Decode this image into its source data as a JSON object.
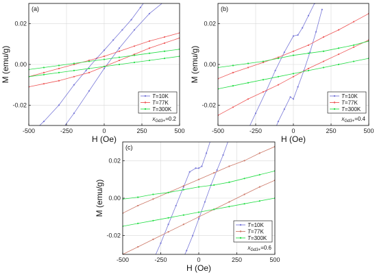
{
  "chart_data": [
    {
      "type": "line",
      "panel_label": "(a)",
      "xlabel": "H (Oe)",
      "ylabel": "M (emu/g)",
      "xlim": [
        -500,
        500
      ],
      "ylim": [
        -0.03,
        0.03
      ],
      "x_ticks": [
        -500,
        -250,
        0,
        250,
        500
      ],
      "x_tick_labels": [
        "-500",
        "-250",
        "0",
        "250",
        "500"
      ],
      "y_ticks": [
        -0.02,
        0.0,
        0.02
      ],
      "y_tick_labels": [
        "-0.02",
        "0.00",
        "0.02"
      ],
      "grid": true,
      "legend_position": "lower-right",
      "annotation": {
        "prefix": "x",
        "sub": "Gd3+",
        "suffix": "=0.2"
      },
      "series": [
        {
          "name": "T=10K",
          "label_prefix": "T",
          "label_suffix": "=10K",
          "color": "#7878d8",
          "branches": [
            {
              "x": [
                -500,
                -400,
                -300,
                -200,
                -120,
                -50,
                0,
                60,
                120,
                180,
                240,
                300
              ],
              "y": [
                -0.035,
                -0.028,
                -0.02,
                -0.01,
                -0.003,
                0.003,
                0.007,
                0.012,
                0.017,
                0.022,
                0.028,
                0.034
              ]
            },
            {
              "x": [
                -300,
                -200,
                -100,
                0,
                100,
                200,
                300,
                400,
                500
              ],
              "y": [
                -0.034,
                -0.024,
                -0.013,
                -0.002,
                0.008,
                0.017,
                0.025,
                0.031,
                0.036
              ]
            }
          ]
        },
        {
          "name": "T=77K",
          "label_prefix": "T",
          "label_suffix": "=77K",
          "color": "#ee5555",
          "branches": [
            {
              "x": [
                -500,
                -400,
                -300,
                -200,
                -100,
                0,
                100,
                200,
                300,
                400,
                500
              ],
              "y": [
                -0.006,
                -0.004,
                -0.002,
                0.0,
                0.002,
                0.004,
                0.0065,
                0.009,
                0.0115,
                0.0135,
                0.0155
              ]
            },
            {
              "x": [
                -500,
                -400,
                -300,
                -200,
                -100,
                0,
                100,
                200,
                300,
                400,
                500
              ],
              "y": [
                -0.011,
                -0.0095,
                -0.008,
                -0.006,
                -0.004,
                -0.001,
                0.002,
                0.005,
                0.008,
                0.0105,
                0.013
              ]
            }
          ]
        },
        {
          "name": "T=300K",
          "label_prefix": "T",
          "label_suffix": "=300K",
          "color": "#22dd44",
          "branches": [
            {
              "x": [
                -500,
                -400,
                -300,
                -200,
                -100,
                0,
                100,
                200,
                300,
                400,
                500
              ],
              "y": [
                -0.0025,
                -0.0015,
                -0.0005,
                0.0005,
                0.0015,
                0.0025,
                0.0035,
                0.0045,
                0.0055,
                0.0065,
                0.0075
              ]
            },
            {
              "x": [
                -500,
                -400,
                -300,
                -200,
                -100,
                0,
                100,
                200,
                300,
                400,
                500
              ],
              "y": [
                -0.006,
                -0.005,
                -0.004,
                -0.003,
                -0.002,
                -0.001,
                0.0,
                0.001,
                0.002,
                0.003,
                0.004
              ]
            }
          ]
        }
      ]
    },
    {
      "type": "line",
      "panel_label": "(b)",
      "xlabel": "H (Oe)",
      "ylabel": "M (emu/g)",
      "xlim": [
        -500,
        500
      ],
      "ylim": [
        -0.03,
        0.03
      ],
      "x_ticks": [
        -500,
        -250,
        0,
        250,
        500
      ],
      "x_tick_labels": [
        "-500",
        "-250",
        "0",
        "250",
        "500"
      ],
      "y_ticks": [
        -0.02,
        0.0,
        0.02
      ],
      "y_tick_labels": [
        "-0.02",
        "0.00",
        "0.02"
      ],
      "grid": true,
      "legend_position": "lower-right",
      "annotation": {
        "prefix": "x",
        "sub": "Gd3+",
        "suffix": "=0.4"
      },
      "series": [
        {
          "name": "T=10K",
          "label_prefix": "T",
          "label_suffix": "=10K",
          "color": "#7878d8",
          "branches": [
            {
              "x": [
                -320,
                -250,
                -180,
                -120,
                -60,
                0,
                30,
                60,
                100,
                140,
                180
              ],
              "y": [
                -0.035,
                -0.024,
                -0.013,
                -0.003,
                0.006,
                0.014,
                0.0145,
                0.018,
                0.024,
                0.03,
                0.035
              ]
            },
            {
              "x": [
                -140,
                -100,
                -60,
                -20,
                0,
                30,
                70,
                110,
                150,
                190
              ],
              "y": [
                -0.035,
                -0.028,
                -0.022,
                -0.016,
                -0.017,
                -0.011,
                -0.003,
                0.006,
                0.016,
                0.027
              ]
            }
          ]
        },
        {
          "name": "T=77K",
          "label_prefix": "T",
          "label_suffix": "=77K",
          "color": "#ee5555",
          "branches": [
            {
              "x": [
                -500,
                -400,
                -300,
                -200,
                -100,
                0,
                100,
                200,
                300,
                400,
                500
              ],
              "y": [
                -0.007,
                -0.004,
                -0.0015,
                0.001,
                0.0035,
                0.0065,
                0.0095,
                0.0135,
                0.017,
                0.021,
                0.025
              ]
            },
            {
              "x": [
                -500,
                -400,
                -300,
                -200,
                -100,
                0,
                100,
                200,
                300,
                400,
                500
              ],
              "y": [
                -0.025,
                -0.021,
                -0.017,
                -0.0135,
                -0.01,
                -0.006,
                -0.002,
                0.0015,
                0.005,
                0.0085,
                0.012
              ]
            }
          ]
        },
        {
          "name": "T=300K",
          "label_prefix": "T",
          "label_suffix": "=300K",
          "color": "#22dd44",
          "branches": [
            {
              "x": [
                -500,
                -400,
                -300,
                -200,
                -100,
                0,
                100,
                200,
                300,
                400,
                500
              ],
              "y": [
                -0.0015,
                -0.0005,
                0.0005,
                0.0015,
                0.003,
                0.0045,
                0.0055,
                0.0065,
                0.008,
                0.0095,
                0.0115
              ]
            },
            {
              "x": [
                -500,
                -400,
                -300,
                -200,
                -100,
                0,
                100,
                200,
                300,
                400,
                500
              ],
              "y": [
                -0.012,
                -0.0105,
                -0.009,
                -0.0075,
                -0.006,
                -0.0045,
                -0.003,
                -0.0015,
                0.0,
                0.0015,
                0.003
              ]
            }
          ]
        }
      ]
    },
    {
      "type": "line",
      "panel_label": "(c)",
      "xlabel": "H (Oe)",
      "ylabel": "M (emu/g)",
      "xlim": [
        -500,
        500
      ],
      "ylim": [
        -0.03,
        0.03
      ],
      "x_ticks": [
        -500,
        -250,
        0,
        250,
        500
      ],
      "x_tick_labels": [
        "-500",
        "-250",
        "0",
        "250",
        "500"
      ],
      "y_ticks": [
        -0.02,
        0.0,
        0.02
      ],
      "y_tick_labels": [
        "-0.02",
        "0.00",
        "0.02"
      ],
      "grid": true,
      "legend_position": "lower-right",
      "annotation": {
        "prefix": "x",
        "sub": "Gd3+",
        "suffix": "=0.6"
      },
      "series": [
        {
          "name": "T=10K",
          "label_prefix": "T",
          "label_suffix": "=10K",
          "color": "#7878d8",
          "branches": [
            {
              "x": [
                -310,
                -250,
                -200,
                -150,
                -100,
                -60,
                -20,
                0,
                20,
                50,
                90
              ],
              "y": [
                -0.035,
                -0.024,
                -0.014,
                -0.004,
                0.006,
                0.014,
                0.016,
                0.016,
                0.017,
                0.024,
                0.034
              ]
            },
            {
              "x": [
                -120,
                -80,
                -40,
                0,
                40,
                80,
                120,
                160,
                200
              ],
              "y": [
                -0.035,
                -0.028,
                -0.02,
                -0.011,
                -0.002,
                0.007,
                0.015,
                0.023,
                0.032
              ]
            }
          ]
        },
        {
          "name": "T=77K",
          "label_prefix": "T",
          "label_suffix": "=77K",
          "color": "#cc7766",
          "branches": [
            {
              "x": [
                -500,
                -400,
                -300,
                -200,
                -100,
                0,
                100,
                200,
                300,
                400,
                500
              ],
              "y": [
                -0.008,
                -0.004,
                -0.0005,
                0.003,
                0.0065,
                0.01,
                0.0135,
                0.017,
                0.02,
                0.024,
                0.0275
              ]
            },
            {
              "x": [
                -500,
                -400,
                -300,
                -200,
                -100,
                0,
                100,
                200,
                300,
                400,
                500
              ],
              "y": [
                -0.03,
                -0.026,
                -0.022,
                -0.018,
                -0.014,
                -0.01,
                -0.006,
                -0.002,
                0.002,
                0.006,
                0.0095
              ]
            }
          ]
        },
        {
          "name": "T=300K",
          "label_prefix": "T",
          "label_suffix": "=300K",
          "color": "#22dd44",
          "branches": [
            {
              "x": [
                -500,
                -400,
                -300,
                -200,
                -100,
                0,
                100,
                200,
                300,
                400,
                500
              ],
              "y": [
                -0.0005,
                0.0005,
                0.002,
                0.003,
                0.0045,
                0.006,
                0.007,
                0.0085,
                0.0105,
                0.0125,
                0.0145
              ]
            },
            {
              "x": [
                -500,
                -400,
                -300,
                -200,
                -100,
                0,
                100,
                200,
                300,
                400,
                500
              ],
              "y": [
                -0.015,
                -0.0135,
                -0.012,
                -0.0105,
                -0.009,
                -0.0075,
                -0.006,
                -0.0045,
                -0.003,
                -0.0015,
                0.0
              ]
            }
          ]
        }
      ]
    }
  ]
}
